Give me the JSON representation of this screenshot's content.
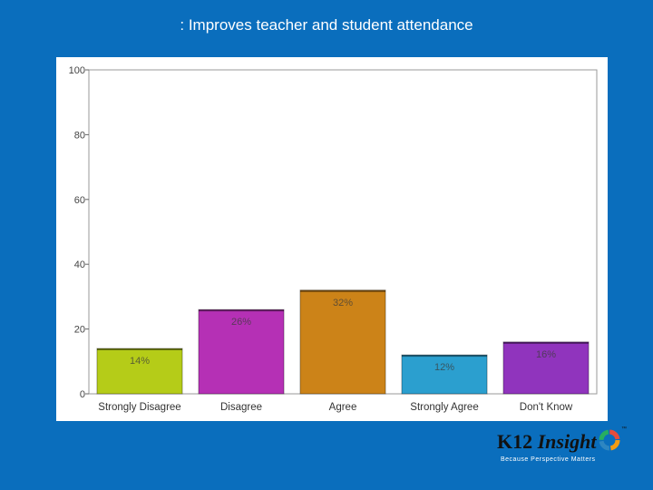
{
  "slide": {
    "title": ": Improves teacher and student attendance"
  },
  "chart_data": {
    "type": "bar",
    "categories": [
      "Strongly Disagree",
      "Disagree",
      "Agree",
      "Strongly Agree",
      "Don't Know"
    ],
    "values": [
      14,
      26,
      32,
      12,
      16
    ],
    "data_labels": [
      "14%",
      "26%",
      "32%",
      "12%",
      "16%"
    ],
    "colors": [
      "#b5cc18",
      "#b530b5",
      "#cc8318",
      "#2b9fcf",
      "#9034bd"
    ],
    "ylim": [
      0,
      100
    ],
    "yticks": [
      0,
      20,
      40,
      60,
      80,
      100
    ],
    "xlabel": "",
    "ylabel": "",
    "grid": false
  },
  "brand": {
    "name_part1": "K12",
    "name_part2": "Insight",
    "trademark": "™",
    "tagline": "Because Perspective Matters",
    "ring_colors": [
      "#f39c12",
      "#2e86c1",
      "#27ae60",
      "#e74c3c"
    ]
  }
}
